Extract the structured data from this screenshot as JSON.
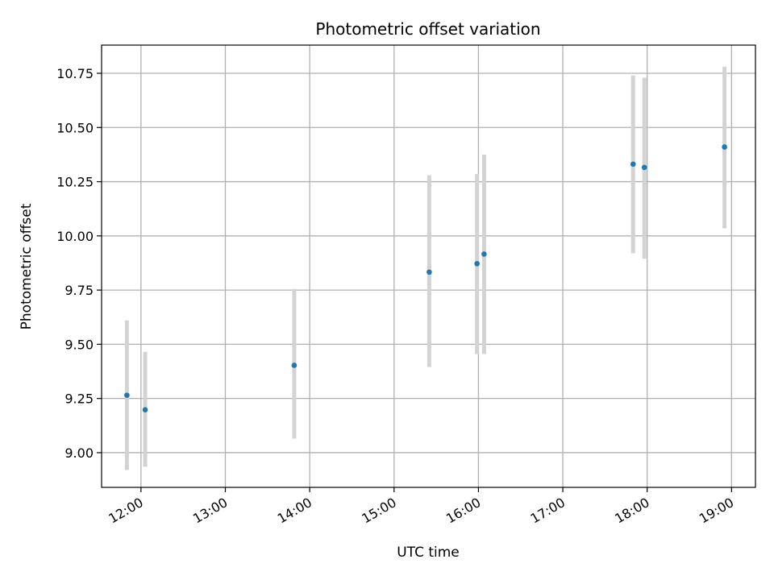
{
  "chart_data": {
    "type": "scatter",
    "title": "Photometric offset variation",
    "xlabel": "UTC time",
    "ylabel": "Photometric offset",
    "grid": true,
    "x_tick_labels": [
      "12:00",
      "13:00",
      "14:00",
      "15:00",
      "16:00",
      "17:00",
      "18:00",
      "19:00"
    ],
    "y_tick_labels": [
      "9.00",
      "9.25",
      "9.50",
      "9.75",
      "10.00",
      "10.25",
      "10.50",
      "10.75"
    ],
    "y_ticks": [
      9.0,
      9.25,
      9.5,
      9.75,
      10.0,
      10.25,
      10.5,
      10.75
    ],
    "xlim": [
      "11:32",
      "19:17"
    ],
    "ylim": [
      8.84,
      10.88
    ],
    "colors": {
      "point": "#1f77b4",
      "errorbar": "#d3d3d3",
      "grid": "#b0b0b0"
    },
    "series": [
      {
        "x": [
          "11:50",
          "12:03",
          "13:49",
          "15:25",
          "15:59",
          "16:04",
          "17:50",
          "17:58",
          "18:55"
        ],
        "y": [
          9.265,
          9.198,
          9.403,
          9.833,
          9.872,
          9.916,
          10.331,
          10.316,
          10.41
        ],
        "yerr_low": [
          8.92,
          8.935,
          9.065,
          9.395,
          9.455,
          9.455,
          9.92,
          9.895,
          10.035
        ],
        "yerr_high": [
          9.61,
          9.465,
          9.755,
          10.28,
          10.285,
          10.375,
          10.74,
          10.73,
          10.78
        ]
      }
    ]
  }
}
